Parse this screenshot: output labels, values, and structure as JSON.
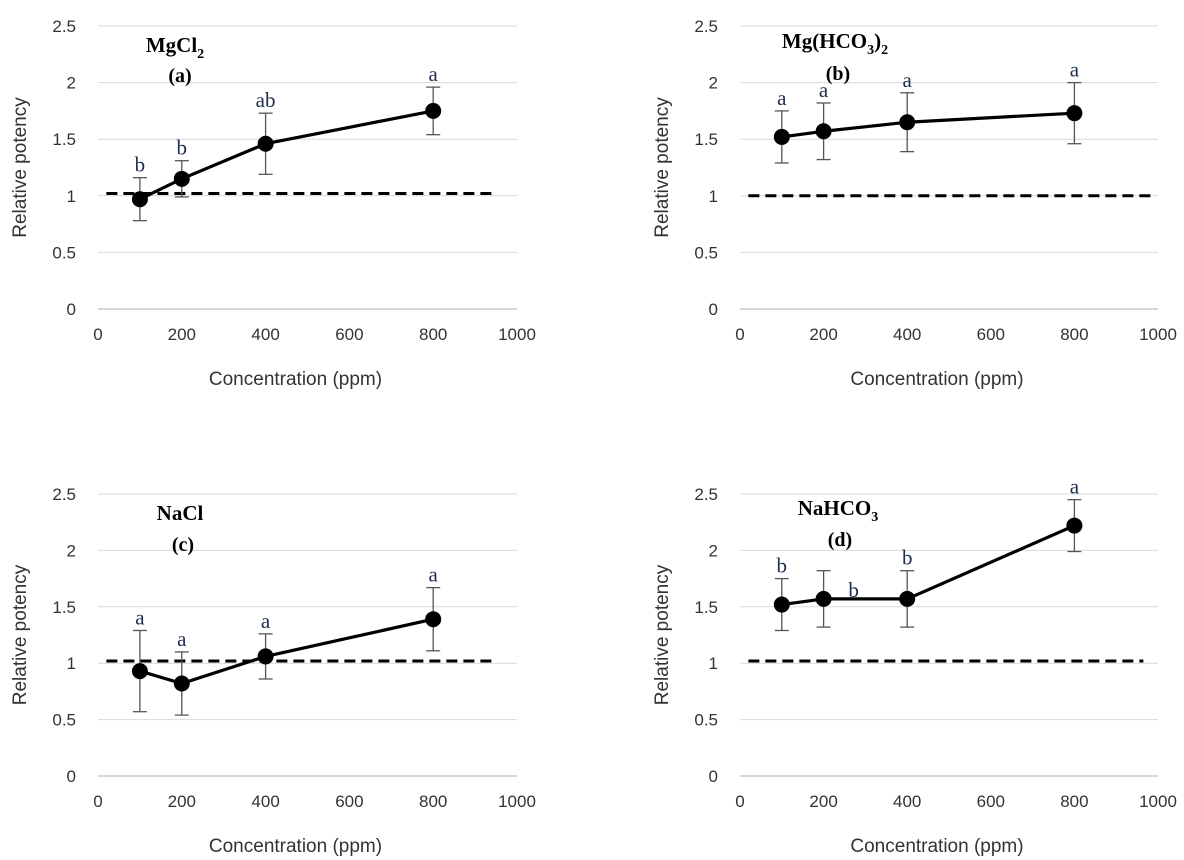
{
  "chart_data": [
    {
      "type": "line",
      "title": "MgCl",
      "title_subscript": "2",
      "panel_label": "(a)",
      "xlabel": "Concentration (ppm)",
      "ylabel": "Relative potency",
      "xlim": [
        0,
        1000
      ],
      "ylim": [
        0,
        2.5
      ],
      "xticks": [
        "0",
        "200",
        "400",
        "600",
        "800",
        "1000"
      ],
      "yticks": [
        "0",
        "0.5",
        "1",
        "1.5",
        "2",
        "2.5"
      ],
      "gridlines": "horizontal",
      "x": [
        100,
        200,
        400,
        800
      ],
      "y": [
        0.97,
        1.15,
        1.46,
        1.75
      ],
      "error": [
        0.19,
        0.16,
        0.27,
        0.21
      ],
      "significance_letters": [
        "b",
        "b",
        "ab",
        "a"
      ],
      "reference_line": {
        "y": 1.02,
        "style": "dashed",
        "x_range": [
          20,
          950
        ]
      }
    },
    {
      "type": "line",
      "title": "Mg(HCO",
      "title_subscript": "3",
      "title_suffix": ")",
      "title_suffix_subscript": "2",
      "panel_label": "(b)",
      "xlabel": "Concentration (ppm)",
      "ylabel": "Relative potency",
      "xlim": [
        0,
        1000
      ],
      "ylim": [
        0,
        2.5
      ],
      "xticks": [
        "0",
        "200",
        "400",
        "600",
        "800",
        "1000"
      ],
      "yticks": [
        "0",
        "0.5",
        "1",
        "1.5",
        "2",
        "2.5"
      ],
      "gridlines": "horizontal",
      "x": [
        100,
        200,
        400,
        800
      ],
      "y": [
        1.52,
        1.57,
        1.65,
        1.73
      ],
      "error": [
        0.23,
        0.25,
        0.26,
        0.27
      ],
      "significance_letters": [
        "a",
        "a",
        "a",
        "a"
      ],
      "reference_line": {
        "y": 1.0,
        "style": "dashed",
        "x_range": [
          20,
          985
        ]
      }
    },
    {
      "type": "line",
      "title": "NaCl",
      "panel_label": "(c)",
      "xlabel": "Concentration (ppm)",
      "ylabel": "Relative potency",
      "xlim": [
        0,
        1000
      ],
      "ylim": [
        0,
        2.5
      ],
      "xticks": [
        "0",
        "200",
        "400",
        "600",
        "800",
        "1000"
      ],
      "yticks": [
        "0",
        "0.5",
        "1",
        "1.5",
        "2",
        "2.5"
      ],
      "gridlines": "horizontal",
      "x": [
        100,
        200,
        400,
        800
      ],
      "y": [
        0.93,
        0.82,
        1.06,
        1.39
      ],
      "error": [
        0.36,
        0.28,
        0.2,
        0.28
      ],
      "significance_letters": [
        "a",
        "a",
        "a",
        "a"
      ],
      "reference_line": {
        "y": 1.02,
        "style": "dashed",
        "x_range": [
          20,
          945
        ]
      }
    },
    {
      "type": "line",
      "title": "NaHCO",
      "title_subscript": "3",
      "panel_label": "(d)",
      "xlabel": "Concentration (ppm)",
      "ylabel": "Relative potency",
      "xlim": [
        0,
        1000
      ],
      "ylim": [
        0,
        2.5
      ],
      "xticks": [
        "0",
        "200",
        "400",
        "600",
        "800",
        "1000"
      ],
      "yticks": [
        "0",
        "0.5",
        "1",
        "1.5",
        "2",
        "2.5"
      ],
      "gridlines": "horizontal",
      "x": [
        100,
        200,
        400,
        800
      ],
      "y": [
        1.52,
        1.57,
        1.57,
        2.22
      ],
      "error": [
        0.23,
        0.25,
        0.25,
        0.23
      ],
      "significance_letters": [
        "b",
        "b",
        "b",
        "a"
      ],
      "reference_line": {
        "y": 1.02,
        "style": "dashed",
        "x_range": [
          20,
          965
        ]
      }
    }
  ]
}
